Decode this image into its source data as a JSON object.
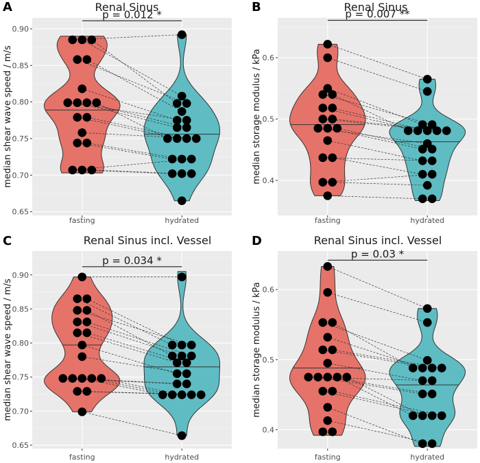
{
  "colors": {
    "fasting": "#e5736a",
    "hydrated": "#5fbcc3"
  },
  "chart_data": [
    {
      "type": "violin",
      "letter": "A",
      "title": "Renal Sinus",
      "xlabel": "",
      "ylabel": "median shear wave speed / m/s",
      "categories": [
        "fasting",
        "hydrated"
      ],
      "ylim": [
        0.645,
        0.915
      ],
      "yticks": [
        0.65,
        0.7,
        0.75,
        0.8,
        0.85,
        0.9
      ],
      "yticklabels": [
        "0.65",
        "0.70",
        "0.75",
        "0.80",
        "0.85",
        "0.90"
      ],
      "significance": "p = 0.012 *",
      "sig_y": 0.911,
      "series": [
        {
          "name": "fasting",
          "values": [
            0.885,
            0.885,
            0.885,
            0.858,
            0.858,
            0.818,
            0.799,
            0.799,
            0.799,
            0.799,
            0.779,
            0.779,
            0.758,
            0.744,
            0.744,
            0.707,
            0.707,
            0.707
          ],
          "median": 0.789,
          "range": [
            0.703,
            0.89
          ]
        },
        {
          "name": "hydrated",
          "values": [
            0.892,
            0.808,
            0.798,
            0.798,
            0.787,
            0.775,
            0.775,
            0.765,
            0.765,
            0.75,
            0.75,
            0.75,
            0.75,
            0.722,
            0.722,
            0.722,
            0.702,
            0.702,
            0.702,
            0.665
          ],
          "median": 0.756,
          "range": [
            0.665,
            0.892
          ]
        }
      ]
    },
    {
      "type": "violin",
      "letter": "B",
      "title": "Renal Sinus",
      "xlabel": "",
      "ylabel": "median storage modulus / kPa",
      "categories": [
        "fasting",
        "hydrated"
      ],
      "ylim": [
        0.343,
        0.665
      ],
      "yticks": [
        0.4,
        0.5,
        0.6
      ],
      "yticklabels": [
        "0.4",
        "0.5",
        "0.6"
      ],
      "significance": "p = 0.007 **",
      "sig_y": 0.661,
      "series": [
        {
          "name": "fasting",
          "values": [
            0.622,
            0.6,
            0.55,
            0.54,
            0.54,
            0.518,
            0.518,
            0.5,
            0.5,
            0.485,
            0.485,
            0.485,
            0.465,
            0.437,
            0.437,
            0.397,
            0.397,
            0.375
          ],
          "median": 0.491,
          "range": [
            0.375,
            0.622
          ]
        },
        {
          "name": "hydrated",
          "values": [
            0.565,
            0.545,
            0.491,
            0.491,
            0.481,
            0.481,
            0.481,
            0.481,
            0.481,
            0.46,
            0.451,
            0.451,
            0.432,
            0.432,
            0.41,
            0.41,
            0.392,
            0.37,
            0.37
          ],
          "median": 0.463,
          "range": [
            0.367,
            0.565
          ]
        }
      ]
    },
    {
      "type": "violin",
      "letter": "C",
      "title": "Renal Sinus incl. Vessel",
      "xlabel": "",
      "ylabel": "median shear wave speed / m/s",
      "categories": [
        "fasting",
        "hydrated"
      ],
      "ylim": [
        0.645,
        0.935
      ],
      "yticks": [
        0.65,
        0.7,
        0.75,
        0.8,
        0.85,
        0.9
      ],
      "yticklabels": [
        "0.65",
        "0.70",
        "0.75",
        "0.80",
        "0.85",
        "0.90"
      ],
      "significance": "p = 0.034 *",
      "sig_y": 0.912,
      "series": [
        {
          "name": "fasting",
          "values": [
            0.897,
            0.865,
            0.865,
            0.848,
            0.848,
            0.831,
            0.831,
            0.815,
            0.815,
            0.797,
            0.78,
            0.748,
            0.748,
            0.748,
            0.748,
            0.748,
            0.729,
            0.729,
            0.699
          ],
          "median": 0.797,
          "range": [
            0.699,
            0.897
          ]
        },
        {
          "name": "hydrated",
          "values": [
            0.897,
            0.797,
            0.797,
            0.797,
            0.781,
            0.781,
            0.781,
            0.771,
            0.771,
            0.755,
            0.755,
            0.74,
            0.74,
            0.724,
            0.724,
            0.724,
            0.724,
            0.724,
            0.664
          ],
          "median": 0.765,
          "range": [
            0.664,
            0.905
          ]
        }
      ]
    },
    {
      "type": "violin",
      "letter": "D",
      "title": "Renal Sinus incl. Vessel",
      "xlabel": "",
      "ylabel": "median storage modulus / kPa",
      "categories": [
        "fasting",
        "hydrated"
      ],
      "ylim": [
        0.373,
        0.655
      ],
      "yticks": [
        0.4,
        0.5,
        0.6
      ],
      "yticklabels": [
        "0.4",
        "0.5",
        "0.6"
      ],
      "significance": "p = 0.03 *",
      "sig_y": 0.642,
      "series": [
        {
          "name": "fasting",
          "values": [
            0.633,
            0.596,
            0.553,
            0.553,
            0.532,
            0.514,
            0.514,
            0.495,
            0.475,
            0.475,
            0.475,
            0.475,
            0.475,
            0.455,
            0.455,
            0.432,
            0.413,
            0.397,
            0.397
          ],
          "median": 0.488,
          "range": [
            0.392,
            0.633
          ]
        },
        {
          "name": "hydrated",
          "values": [
            0.573,
            0.553,
            0.499,
            0.488,
            0.488,
            0.488,
            0.488,
            0.47,
            0.47,
            0.451,
            0.451,
            0.42,
            0.42,
            0.42,
            0.42,
            0.38,
            0.38
          ],
          "median": 0.464,
          "range": [
            0.376,
            0.573
          ]
        }
      ]
    }
  ]
}
